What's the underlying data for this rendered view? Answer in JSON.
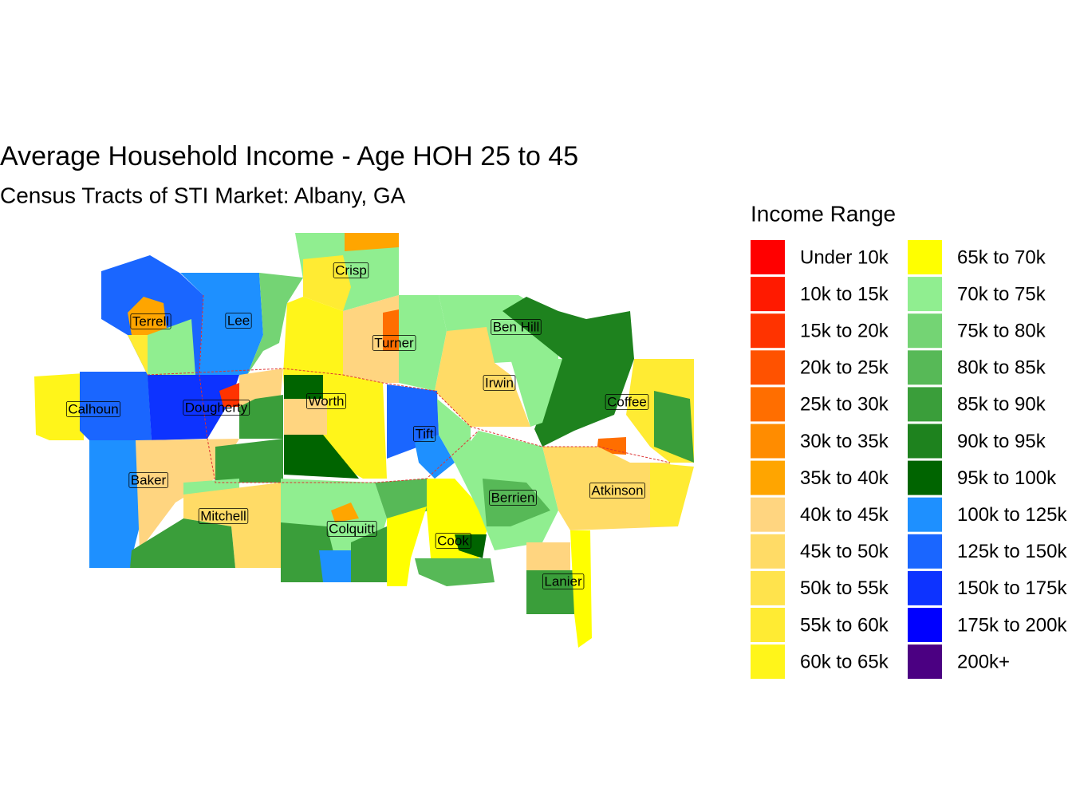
{
  "title": "Average Household Income - Age HOH 25 to 45",
  "subtitle": "Census Tracts of STI Market: Albany, GA",
  "legend": {
    "title": "Income Range",
    "items": [
      {
        "label": "Under 10k",
        "color": "#FF0000"
      },
      {
        "label": "10k to 15k",
        "color": "#FF1A00"
      },
      {
        "label": "15k to 20k",
        "color": "#FF3300"
      },
      {
        "label": "20k to 25k",
        "color": "#FF5200"
      },
      {
        "label": "25k to 30k",
        "color": "#FF6E00"
      },
      {
        "label": "30k to 35k",
        "color": "#FF8C00"
      },
      {
        "label": "35k to 40k",
        "color": "#FFA500"
      },
      {
        "label": "40k to 45k",
        "color": "#FFD580"
      },
      {
        "label": "45k to 50k",
        "color": "#FFDB66"
      },
      {
        "label": "50k to 55k",
        "color": "#FFE34C"
      },
      {
        "label": "55k to 60k",
        "color": "#FFEB33"
      },
      {
        "label": "60k to 65k",
        "color": "#FFF51A"
      },
      {
        "label": "65k to 70k",
        "color": "#FFFF00"
      },
      {
        "label": "70k to 75k",
        "color": "#90EE90"
      },
      {
        "label": "75k to 80k",
        "color": "#74D474"
      },
      {
        "label": "80k to 85k",
        "color": "#57B957"
      },
      {
        "label": "85k to 90k",
        "color": "#3A9E3A"
      },
      {
        "label": "90k to 95k",
        "color": "#1E821E"
      },
      {
        "label": "95k to 100k",
        "color": "#006400"
      },
      {
        "label": "100k to 125k",
        "color": "#1E90FF"
      },
      {
        "label": "125k to 150k",
        "color": "#1A66FF"
      },
      {
        "label": "150k to 175k",
        "color": "#0D33FF"
      },
      {
        "label": "175k to 200k",
        "color": "#0000FF"
      },
      {
        "label": "200k+",
        "color": "#4B0082"
      }
    ]
  },
  "counties": [
    "Crisp",
    "Terrell",
    "Lee",
    "Turner",
    "Ben Hill",
    "Irwin",
    "Worth",
    "Calhoun",
    "Dougherty",
    "Coffee",
    "Tift",
    "Baker",
    "Atkinson",
    "Berrien",
    "Mitchell",
    "Colquitt",
    "Cook",
    "Lanier"
  ]
}
